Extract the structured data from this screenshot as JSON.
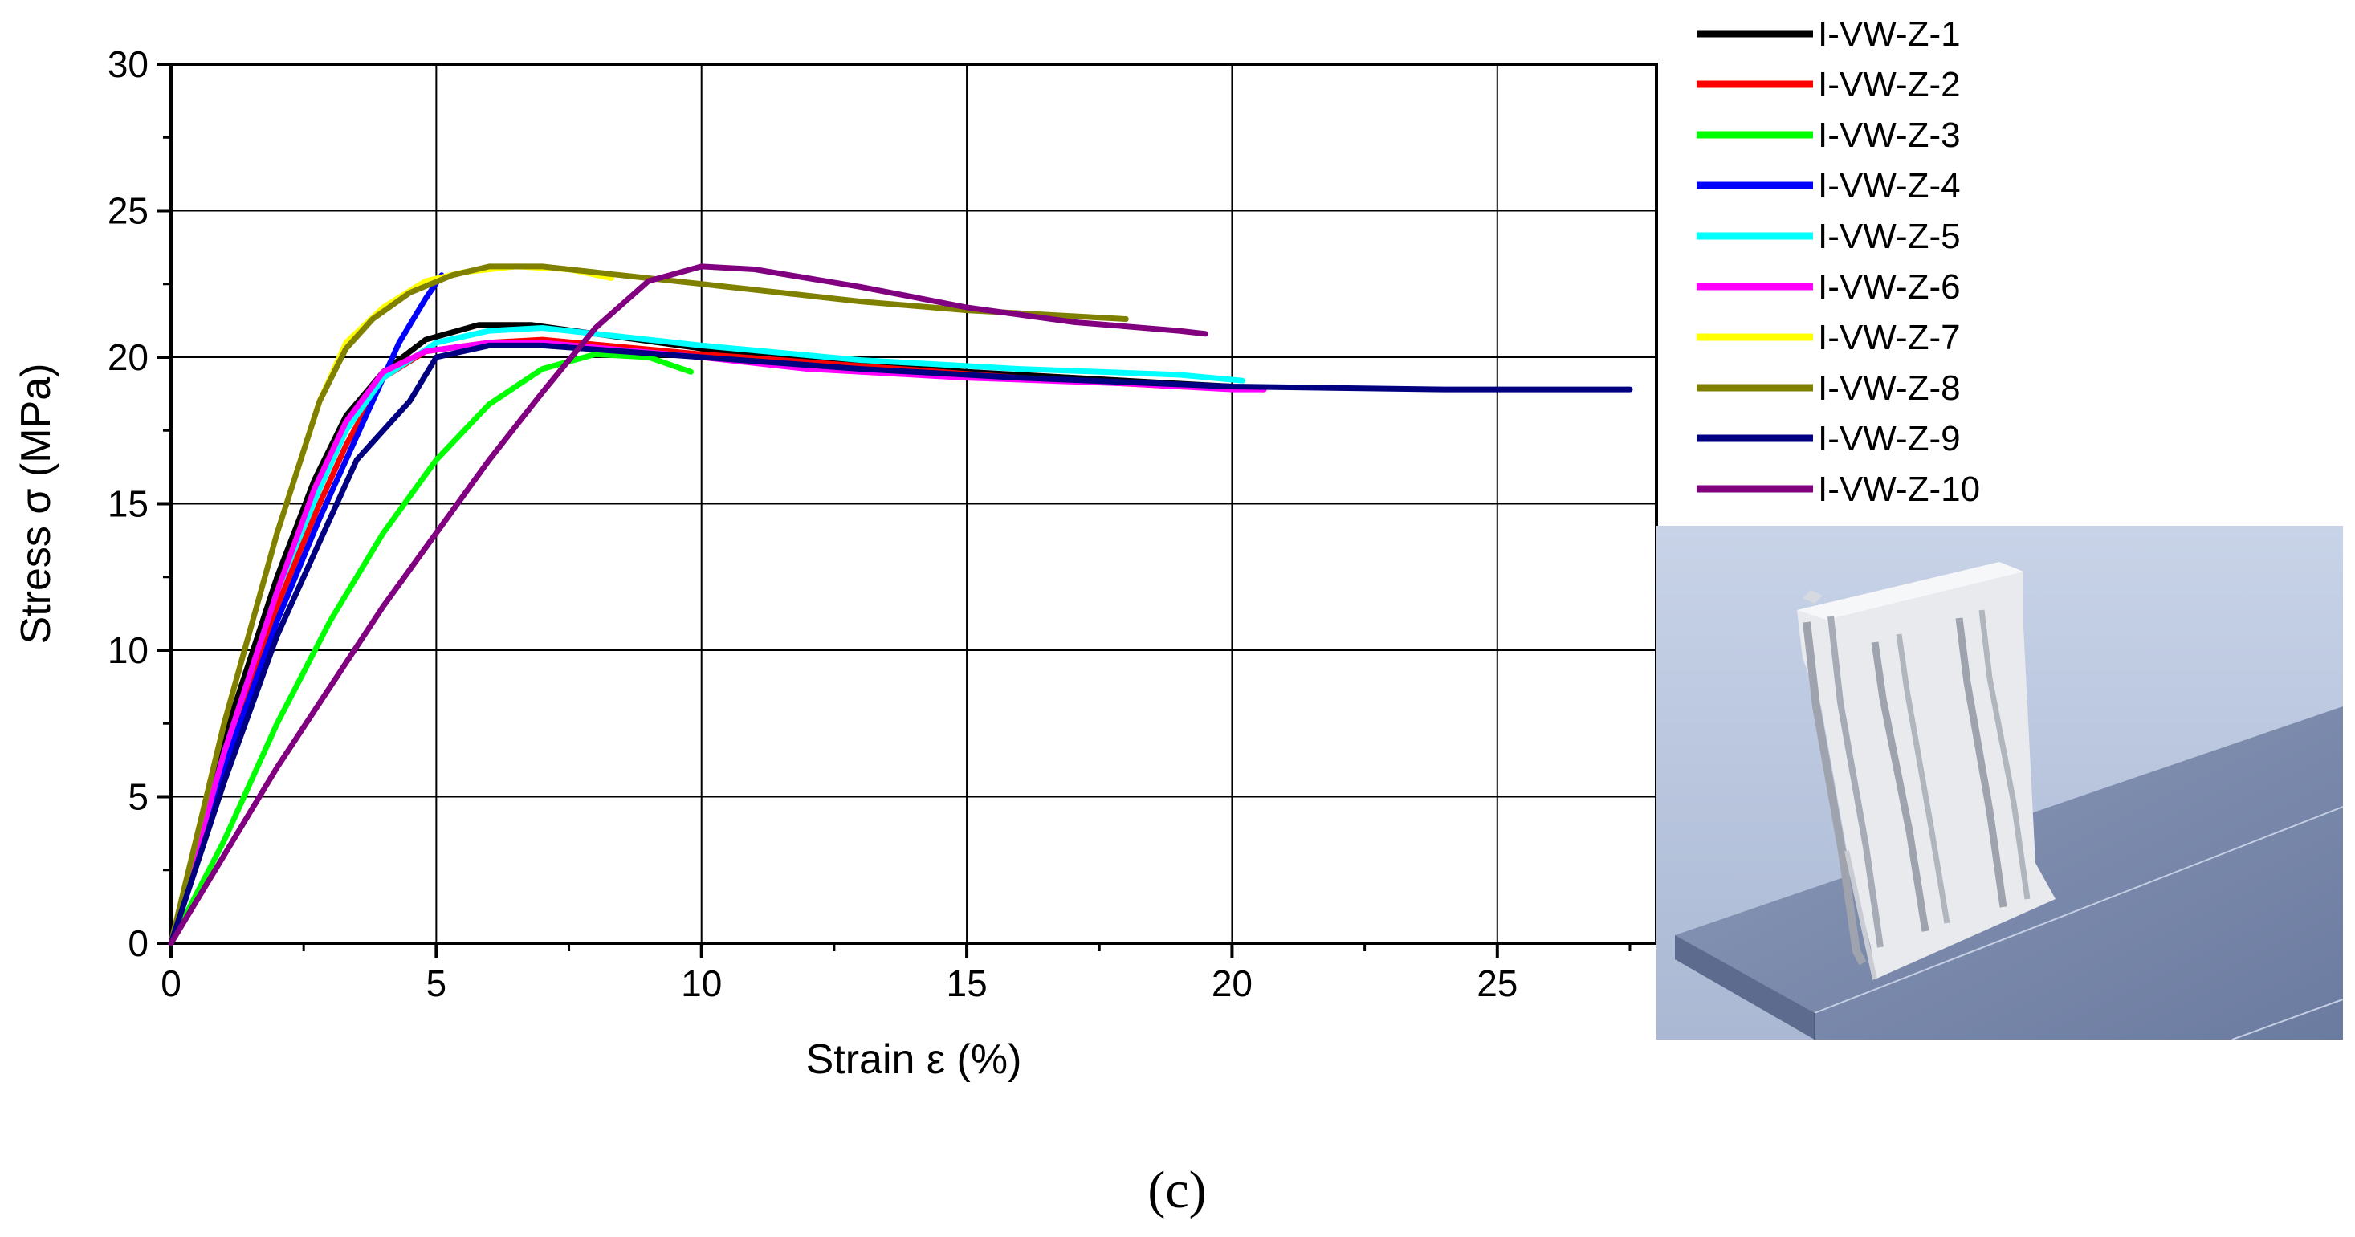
{
  "chart_data": {
    "type": "line",
    "xlabel": "Strain ε (%)",
    "ylabel": "Stress σ (MPa)",
    "xlim": [
      0,
      28
    ],
    "ylim": [
      0,
      30
    ],
    "x_ticks": [
      0,
      5,
      10,
      15,
      20,
      25
    ],
    "y_ticks": [
      0,
      5,
      10,
      15,
      20,
      25,
      30
    ],
    "grid": true,
    "legend_position": "top-right, outside plot",
    "panel_label": "(c)",
    "series": [
      {
        "name": "I-VW-Z-1",
        "color": "#000000",
        "points": [
          [
            0,
            0
          ],
          [
            1,
            7
          ],
          [
            2,
            12.5
          ],
          [
            2.7,
            15.8
          ],
          [
            3.3,
            18
          ],
          [
            4,
            19.5
          ],
          [
            4.8,
            20.6
          ],
          [
            5.8,
            21.1
          ],
          [
            6.8,
            21.1
          ],
          [
            8,
            20.8
          ],
          [
            10,
            20.3
          ],
          [
            12,
            19.9
          ],
          [
            15,
            19.5
          ],
          [
            18,
            19.2
          ],
          [
            20,
            19
          ]
        ]
      },
      {
        "name": "I-VW-Z-2",
        "color": "#ff0000",
        "points": [
          [
            0,
            0
          ],
          [
            1,
            6
          ],
          [
            2,
            11.5
          ],
          [
            2.8,
            15
          ],
          [
            3.3,
            17
          ],
          [
            4,
            19.3
          ],
          [
            4.8,
            20.2
          ],
          [
            6,
            20.5
          ],
          [
            7,
            20.6
          ],
          [
            10,
            20.1
          ],
          [
            13,
            19.7
          ],
          [
            16,
            19.3
          ],
          [
            19,
            19
          ],
          [
            20.6,
            18.9
          ]
        ]
      },
      {
        "name": "I-VW-Z-3",
        "color": "#00ff00",
        "points": [
          [
            0,
            0
          ],
          [
            1,
            3.5
          ],
          [
            2,
            7.5
          ],
          [
            3,
            11
          ],
          [
            4,
            14
          ],
          [
            5,
            16.5
          ],
          [
            6,
            18.4
          ],
          [
            7,
            19.6
          ],
          [
            8,
            20.1
          ],
          [
            9,
            20
          ],
          [
            9.8,
            19.5
          ]
        ]
      },
      {
        "name": "I-VW-Z-4",
        "color": "#0000ff",
        "points": [
          [
            0,
            0
          ],
          [
            1,
            6
          ],
          [
            2,
            11
          ],
          [
            2.8,
            14.5
          ],
          [
            3.3,
            16.5
          ],
          [
            3.8,
            18.5
          ],
          [
            4.3,
            20.5
          ],
          [
            4.8,
            22
          ],
          [
            5.1,
            22.8
          ]
        ]
      },
      {
        "name": "I-VW-Z-5",
        "color": "#00ffff",
        "points": [
          [
            0,
            0
          ],
          [
            1,
            6.5
          ],
          [
            2,
            12
          ],
          [
            2.8,
            15.5
          ],
          [
            3.3,
            17.5
          ],
          [
            4,
            19.3
          ],
          [
            5,
            20.5
          ],
          [
            6,
            20.9
          ],
          [
            7,
            21
          ],
          [
            10,
            20.4
          ],
          [
            13,
            19.9
          ],
          [
            16,
            19.6
          ],
          [
            19,
            19.4
          ],
          [
            20.2,
            19.2
          ]
        ]
      },
      {
        "name": "I-VW-Z-6",
        "color": "#ff00ff",
        "points": [
          [
            0,
            0
          ],
          [
            1,
            6.5
          ],
          [
            2,
            12
          ],
          [
            2.7,
            15.5
          ],
          [
            3.3,
            17.8
          ],
          [
            4,
            19.5
          ],
          [
            4.8,
            20.2
          ],
          [
            6,
            20.5
          ],
          [
            7,
            20.5
          ],
          [
            10,
            20
          ],
          [
            12,
            19.6
          ],
          [
            15,
            19.3
          ],
          [
            18,
            19.1
          ],
          [
            20,
            18.9
          ],
          [
            20.6,
            18.9
          ]
        ]
      },
      {
        "name": "I-VW-Z-7",
        "color": "#ffff00",
        "points": [
          [
            0,
            0
          ],
          [
            1,
            7.5
          ],
          [
            2,
            14
          ],
          [
            2.8,
            18.5
          ],
          [
            3.3,
            20.5
          ],
          [
            4,
            21.7
          ],
          [
            4.8,
            22.6
          ],
          [
            5.5,
            22.9
          ],
          [
            6.5,
            23.1
          ],
          [
            7.5,
            23
          ],
          [
            8.3,
            22.7
          ]
        ]
      },
      {
        "name": "I-VW-Z-8",
        "color": "#808000",
        "points": [
          [
            0,
            0
          ],
          [
            1,
            7.5
          ],
          [
            2,
            14
          ],
          [
            2.8,
            18.5
          ],
          [
            3.3,
            20.3
          ],
          [
            3.8,
            21.3
          ],
          [
            4.5,
            22.2
          ],
          [
            5.3,
            22.8
          ],
          [
            6,
            23.1
          ],
          [
            7,
            23.1
          ],
          [
            9,
            22.7
          ],
          [
            11,
            22.3
          ],
          [
            13,
            21.9
          ],
          [
            15,
            21.6
          ],
          [
            17,
            21.4
          ],
          [
            18,
            21.3
          ]
        ]
      },
      {
        "name": "I-VW-Z-9",
        "color": "#000080",
        "points": [
          [
            0,
            0
          ],
          [
            1,
            5.5
          ],
          [
            2,
            10.5
          ],
          [
            3,
            14.5
          ],
          [
            3.5,
            16.5
          ],
          [
            4,
            17.5
          ],
          [
            4.5,
            18.5
          ],
          [
            5,
            20
          ],
          [
            6,
            20.4
          ],
          [
            7,
            20.4
          ],
          [
            10,
            20
          ],
          [
            13,
            19.6
          ],
          [
            16,
            19.3
          ],
          [
            20,
            19
          ],
          [
            24,
            18.9
          ],
          [
            27.5,
            18.9
          ]
        ]
      },
      {
        "name": "I-VW-Z-10",
        "color": "#800080",
        "points": [
          [
            0,
            0
          ],
          [
            2,
            6
          ],
          [
            4,
            11.5
          ],
          [
            6,
            16.5
          ],
          [
            7,
            18.8
          ],
          [
            8,
            21
          ],
          [
            9,
            22.6
          ],
          [
            10,
            23.1
          ],
          [
            11,
            23
          ],
          [
            13,
            22.4
          ],
          [
            15,
            21.7
          ],
          [
            17,
            21.2
          ],
          [
            19,
            20.9
          ],
          [
            19.5,
            20.8
          ]
        ]
      }
    ]
  }
}
